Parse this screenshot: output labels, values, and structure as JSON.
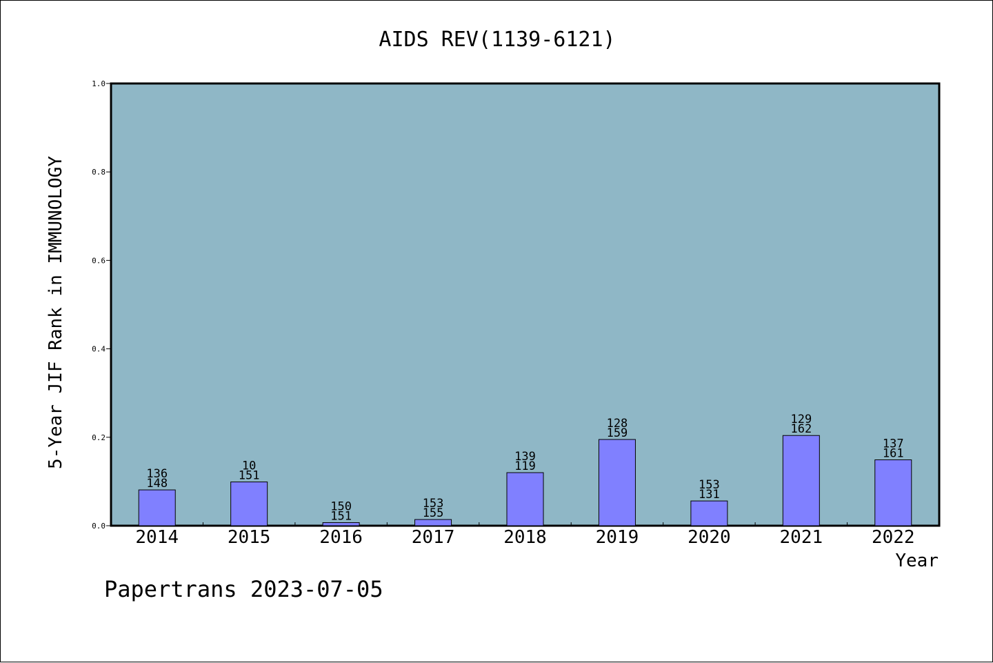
{
  "chart_data": {
    "type": "bar",
    "title": "AIDS REV(1139-6121)",
    "xlabel": "Year",
    "ylabel": "5-Year JIF Rank in IMMUNOLOGY",
    "ylim": [
      0,
      1.0
    ],
    "yticks": [
      "0.0",
      "0.2",
      "0.4",
      "0.6",
      "0.8",
      "1.0"
    ],
    "ytick_values": [
      0.0,
      0.2,
      0.4,
      0.6,
      0.8,
      1.0
    ],
    "grid": false,
    "categories": [
      "2014",
      "2015",
      "2016",
      "2017",
      "2018",
      "2019",
      "2020",
      "2021",
      "2022"
    ],
    "values": [
      0.081,
      0.099,
      0.007,
      0.014,
      0.12,
      0.195,
      0.056,
      0.204,
      0.149
    ],
    "labels_top": [
      "136",
      "10",
      "150",
      "153",
      "139",
      "128",
      "153",
      "129",
      "137"
    ],
    "labels_bottom": [
      "148",
      "151",
      "151",
      "155",
      "119",
      "159",
      "131",
      "162",
      "161"
    ],
    "colors": {
      "bar": "#8080ff",
      "plot_background": "#8fb7c6",
      "axis": "#000000"
    }
  },
  "footer": {
    "text": "Papertrans 2023-07-05"
  }
}
